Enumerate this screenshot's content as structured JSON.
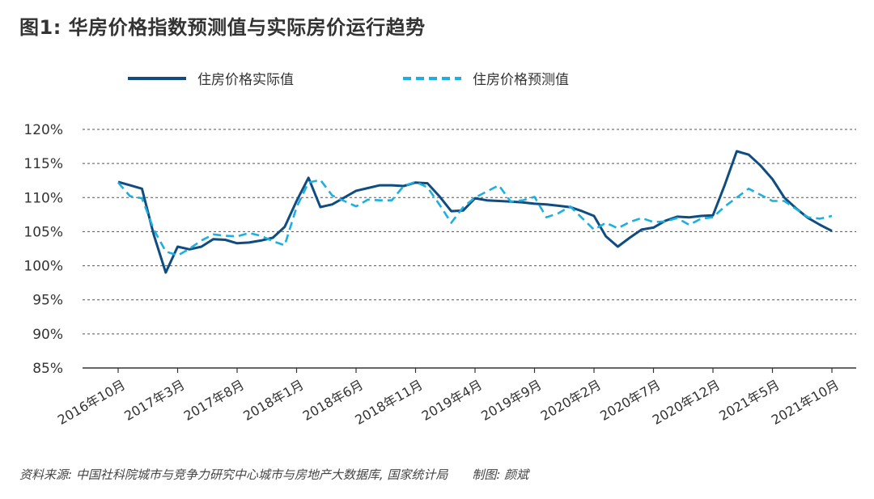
{
  "header": {
    "title": "图1: 华房价格指数预测值与实际房价运行趋势"
  },
  "footer": {
    "source": "资料来源: 中国社科院城市与竞争力研究中心城市与房地产大数据库, 国家统计局　　制图: 颜斌"
  },
  "colors": {
    "actual": "#0f4c81",
    "forecast": "#1bb0df",
    "grid": "#555555"
  },
  "chart_data": {
    "type": "line",
    "ylim": [
      85,
      120
    ],
    "yticks": [
      85,
      90,
      95,
      100,
      105,
      110,
      115,
      120
    ],
    "ytick_labels": [
      "85%",
      "90%",
      "95%",
      "100%",
      "105%",
      "110%",
      "115%",
      "120%"
    ],
    "xtick_labels": [
      "2016年10月",
      "2017年3月",
      "2017年8月",
      "2018年1月",
      "2018年6月",
      "2018年11月",
      "2019年4月",
      "2019年9月",
      "2020年2月",
      "2020年7月",
      "2020年12月",
      "2021年5月",
      "2021年10月"
    ],
    "xtick_index": [
      0,
      5,
      10,
      15,
      20,
      25,
      30,
      35,
      40,
      45,
      50,
      55,
      60
    ],
    "legend_position": "top",
    "grid": true,
    "series": [
      {
        "name": "住房价格实际值",
        "style": "solid",
        "values": [
          112.3,
          111.8,
          111.3,
          104.5,
          99.0,
          102.8,
          102.4,
          102.8,
          103.9,
          103.8,
          103.3,
          103.4,
          103.7,
          104.1,
          105.7,
          109.5,
          112.9,
          108.6,
          109.0,
          110.0,
          111.0,
          111.4,
          111.8,
          111.8,
          111.7,
          112.2,
          112.1,
          110.2,
          108.0,
          108.1,
          109.9,
          109.6,
          109.5,
          109.4,
          109.3,
          109.1,
          109.0,
          108.8,
          108.6,
          108.0,
          107.3,
          104.3,
          102.8,
          104.1,
          105.3,
          105.6,
          106.6,
          107.2,
          107.1,
          107.3,
          107.4,
          111.9,
          116.8,
          116.3,
          114.7,
          112.7,
          110.0,
          108.4,
          107.0,
          106.0,
          105.1
        ]
      },
      {
        "name": "住房价格预测值",
        "style": "dashed",
        "values": [
          112.2,
          110.2,
          109.9,
          105.3,
          102.1,
          101.5,
          102.5,
          103.7,
          104.6,
          104.4,
          104.3,
          104.8,
          104.4,
          103.6,
          103.0,
          108.6,
          112.2,
          112.6,
          110.3,
          109.5,
          108.7,
          109.7,
          109.6,
          109.6,
          111.7,
          112.3,
          111.5,
          109.0,
          106.3,
          108.6,
          110.0,
          110.9,
          111.8,
          109.4,
          109.6,
          110.1,
          107.1,
          107.7,
          108.7,
          107.0,
          105.3,
          106.3,
          105.5,
          106.4,
          107.0,
          106.4,
          106.5,
          107.0,
          106.0,
          106.9,
          107.1,
          108.7,
          110.0,
          111.3,
          110.4,
          109.5,
          109.5,
          108.3,
          107.1,
          106.9,
          107.3
        ]
      }
    ]
  }
}
